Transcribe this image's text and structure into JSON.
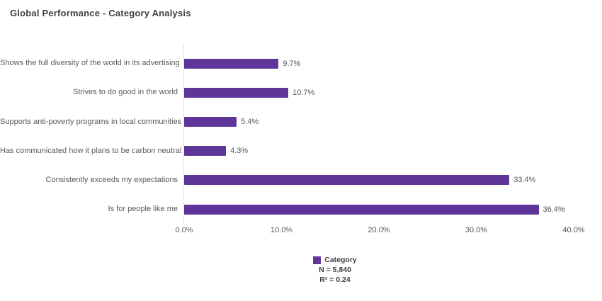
{
  "header": {
    "title": "Global Performance - Category Analysis"
  },
  "chart_data": {
    "type": "bar",
    "orientation": "horizontal",
    "title": "Global Performance - Category Analysis",
    "categories": [
      "Shows the full diversity of the world in its advertising",
      "Strives to do good in the world",
      "Supports anti-poverty programs in local communities",
      "Has communicated how it plans to be carbon neutral",
      "Consistently exceeds my expectations",
      "Is for people like me"
    ],
    "values": [
      9.7,
      10.7,
      5.4,
      4.3,
      33.4,
      36.4
    ],
    "value_labels": [
      "9.7%",
      "10.7%",
      "5.4%",
      "4.3%",
      "33.4%",
      "36.4%"
    ],
    "xlabel": "",
    "ylabel": "",
    "xlim": [
      0,
      40
    ],
    "x_tick_values": [
      0,
      10,
      20,
      30,
      40
    ],
    "x_tick_labels": [
      "0.0%",
      "10.0%",
      "20.0%",
      "30.0%",
      "40.0%"
    ],
    "grid": "off",
    "zero_baseline": "dotted",
    "legend_position": "bottom",
    "legend": {
      "series_label": "Category",
      "n_label": "N = 5,840",
      "r2_label": "R² = 0.24"
    }
  },
  "colors": {
    "bar": "#5E3699",
    "title_text": "#404040",
    "category_text": "#595959",
    "value_text": "#595959",
    "axis_text": "#595959",
    "legend_text": "#404040",
    "zero_line": "#C9C9C9",
    "background": "#FFFFFF"
  }
}
